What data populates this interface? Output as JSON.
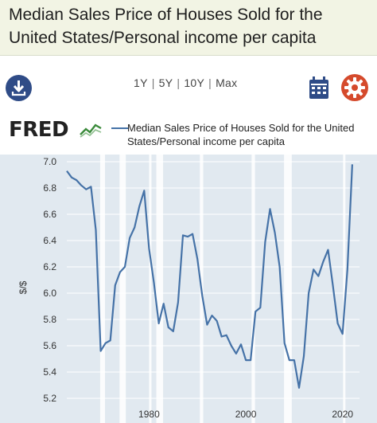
{
  "header": {
    "title": "Median Sales Price of Houses Sold for the United States/Personal income per capita"
  },
  "toolbar": {
    "ranges": [
      "1Y",
      "5Y",
      "10Y",
      "Max"
    ],
    "separator": "|",
    "download_icon": "download-icon",
    "calendar_icon": "calendar-icon",
    "settings_icon": "gear-icon"
  },
  "logo": {
    "text": "FRED",
    "mark": "chart-line-icon"
  },
  "colors": {
    "series": "#4572a7",
    "plot_background": "#e1e9f0",
    "recession_band": "#ffffff",
    "gridline": "#ffffff",
    "title_bar": "#f2f4e4",
    "download_button": "#2f4c87",
    "calendar": "#2f4c87",
    "settings": "#d54a2c"
  },
  "chart_data": {
    "type": "line",
    "title": "",
    "xlabel": "",
    "ylabel": "$/$",
    "ylim": [
      5.2,
      7.0
    ],
    "xlim": [
      1963,
      2023.5
    ],
    "y_ticks": [
      5.2,
      5.4,
      5.6,
      5.8,
      6.0,
      6.2,
      6.4,
      6.6,
      6.8,
      7.0
    ],
    "x_ticks": [
      1980,
      2000,
      2020
    ],
    "grid": "horizontal",
    "legend_position": "top",
    "recessions": [
      [
        1969.9,
        1970.9
      ],
      [
        1973.9,
        1975.2
      ],
      [
        1980.0,
        1980.5
      ],
      [
        1981.5,
        1982.9
      ],
      [
        1990.5,
        1991.2
      ],
      [
        2001.2,
        2001.9
      ],
      [
        2007.9,
        2009.5
      ],
      [
        2020.1,
        2020.4
      ]
    ],
    "series": [
      {
        "name": "Median Sales Price of Houses Sold for the United States/Personal income per capita",
        "x": [
          1963,
          1964,
          1965,
          1966,
          1967,
          1968,
          1969,
          1970,
          1971,
          1972,
          1973,
          1974,
          1975,
          1976,
          1977,
          1978,
          1979,
          1980,
          1981,
          1982,
          1983,
          1984,
          1985,
          1986,
          1987,
          1988,
          1989,
          1990,
          1991,
          1992,
          1993,
          1994,
          1995,
          1996,
          1997,
          1998,
          1999,
          2000,
          2001,
          2002,
          2003,
          2004,
          2005,
          2006,
          2007,
          2008,
          2009,
          2010,
          2011,
          2012,
          2013,
          2014,
          2015,
          2016,
          2017,
          2018,
          2019,
          2020,
          2021,
          2022
        ],
        "values": [
          6.93,
          6.88,
          6.86,
          6.82,
          6.79,
          6.81,
          6.48,
          5.56,
          5.62,
          5.64,
          6.06,
          6.16,
          6.2,
          6.42,
          6.5,
          6.66,
          6.78,
          6.34,
          6.08,
          5.77,
          5.92,
          5.74,
          5.71,
          5.93,
          6.44,
          6.43,
          6.45,
          6.26,
          5.98,
          5.76,
          5.83,
          5.79,
          5.67,
          5.68,
          5.6,
          5.54,
          5.61,
          5.49,
          5.49,
          5.86,
          5.89,
          6.39,
          6.64,
          6.46,
          6.2,
          5.62,
          5.49,
          5.49,
          5.28,
          5.52,
          6.0,
          6.18,
          6.13,
          6.24,
          6.33,
          6.06,
          5.77,
          5.69,
          6.18,
          6.98
        ]
      }
    ]
  }
}
